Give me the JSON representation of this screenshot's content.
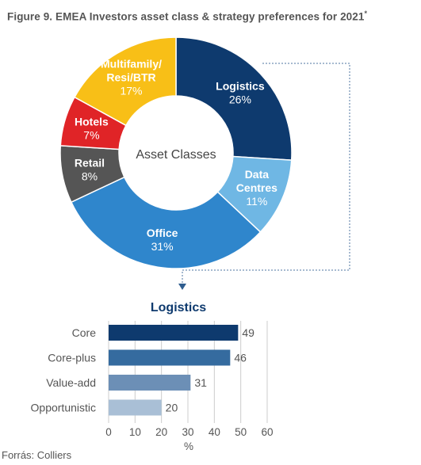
{
  "title": "Figure 9. EMEA Investors asset class & strategy preferences for 2021",
  "title_mark": "*",
  "source": "Forrás: Colliers",
  "chart_data": [
    {
      "type": "pie",
      "center_label": "Asset Classes",
      "slices": [
        {
          "label_lines": [
            "Logistics"
          ],
          "value": 26,
          "value_text": "26%",
          "color": "#0e3a6e",
          "text_color": "#ffffff"
        },
        {
          "label_lines": [
            "Data",
            "Centres"
          ],
          "value": 11,
          "value_text": "11%",
          "color": "#6fb7e4",
          "text_color": "#ffffff"
        },
        {
          "label_lines": [
            "Office"
          ],
          "value": 31,
          "value_text": "31%",
          "color": "#2f86cc",
          "text_color": "#ffffff"
        },
        {
          "label_lines": [
            "Retail"
          ],
          "value": 8,
          "value_text": "8%",
          "color": "#555555",
          "text_color": "#ffffff"
        },
        {
          "label_lines": [
            "Hotels"
          ],
          "value": 7,
          "value_text": "7%",
          "color": "#e02427",
          "text_color": "#ffffff"
        },
        {
          "label_lines": [
            "Multifamily/",
            "Resi/BTR"
          ],
          "value": 17,
          "value_text": "17%",
          "color": "#f8bf17",
          "text_color": "#ffffff"
        }
      ]
    },
    {
      "type": "bar",
      "orientation": "horizontal",
      "title": "Logistics",
      "categories": [
        "Core",
        "Core-plus",
        "Value-add",
        "Opportunistic"
      ],
      "values": [
        49,
        46,
        31,
        20
      ],
      "colors": [
        "#0e3a6e",
        "#356b9f",
        "#6c8fb6",
        "#a9bfd6"
      ],
      "xlabel": "%",
      "xlim": [
        0,
        60
      ],
      "xticks": [
        0,
        10,
        20,
        30,
        40,
        50,
        60
      ],
      "grid": true
    }
  ]
}
